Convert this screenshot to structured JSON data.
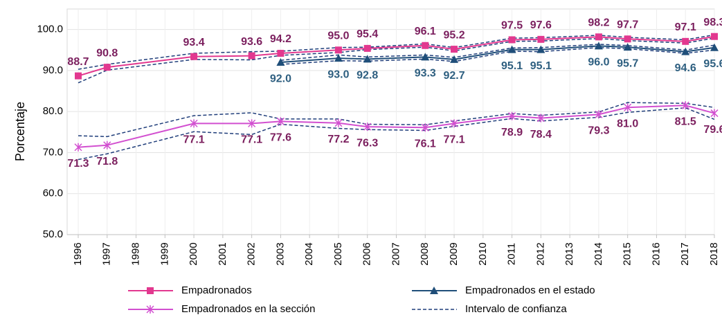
{
  "chart_data": {
    "type": "line",
    "y_label": "Porcentaje",
    "xlim": [
      1996,
      2018
    ],
    "xticks": [
      1996,
      1997,
      1998,
      1999,
      2000,
      2001,
      2002,
      2003,
      2004,
      2005,
      2006,
      2007,
      2008,
      2009,
      2010,
      2011,
      2012,
      2013,
      2014,
      2015,
      2016,
      2017,
      2018
    ],
    "ylim": [
      50,
      105
    ],
    "yticks": [
      {
        "value": 50,
        "label": "50.0"
      },
      {
        "value": 60,
        "label": "60.0"
      },
      {
        "value": 70,
        "label": "70.0"
      },
      {
        "value": 80,
        "label": "80.0"
      },
      {
        "value": 90,
        "label": "90.0"
      },
      {
        "value": 100,
        "label": "100.0"
      }
    ],
    "grid": true,
    "series": [
      {
        "name": "Empadronados",
        "color": "#e2388f",
        "label_color": "#7b1f5e",
        "marker": "square",
        "label_side": "above",
        "x": [
          1996,
          1997,
          2000,
          2002,
          2003,
          2005,
          2006,
          2008,
          2009,
          2011,
          2012,
          2014,
          2015,
          2017,
          2018
        ],
        "values": [
          88.7,
          90.8,
          93.4,
          93.6,
          94.2,
          95.0,
          95.4,
          96.1,
          95.2,
          97.5,
          97.6,
          98.2,
          97.7,
          97.1,
          98.3
        ],
        "value_labels": [
          "88.7",
          "90.8",
          "93.4",
          "93.6",
          "94.2",
          "95.0",
          "95.4",
          "96.1",
          "95.2",
          "97.5",
          "97.6",
          "98.2",
          "97.7",
          "97.1",
          "98.3"
        ]
      },
      {
        "name": "Empadronados en el estado",
        "color": "#1f4e79",
        "label_color": "#2e5f80",
        "marker": "triangle",
        "label_side": "below",
        "x": [
          2003,
          2005,
          2006,
          2008,
          2009,
          2011,
          2012,
          2014,
          2015,
          2017,
          2018
        ],
        "values": [
          92.0,
          93.0,
          92.8,
          93.3,
          92.7,
          95.1,
          95.1,
          96.0,
          95.7,
          94.6,
          95.6
        ],
        "value_labels": [
          "92.0",
          "93.0",
          "92.8",
          "93.3",
          "92.7",
          "95.1",
          "95.1",
          "96.0",
          "95.7",
          "94.6",
          "95.6"
        ]
      },
      {
        "name": "Empadronados en la sección",
        "color": "#d24fd0",
        "label_color": "#7b1f5e",
        "marker": "star",
        "label_side": "below",
        "x": [
          1996,
          1997,
          2000,
          2002,
          2003,
          2005,
          2006,
          2008,
          2009,
          2011,
          2012,
          2014,
          2015,
          2017,
          2018
        ],
        "values": [
          71.3,
          71.8,
          77.1,
          77.1,
          77.6,
          77.2,
          76.3,
          76.1,
          77.1,
          78.9,
          78.4,
          79.3,
          81.0,
          81.5,
          79.6
        ],
        "value_labels": [
          "71.3",
          "71.8",
          "77.1",
          "77.1",
          "77.6",
          "77.2",
          "76.3",
          "76.1",
          "77.1",
          "78.9",
          "78.4",
          "79.3",
          "81.0",
          "81.5",
          "79.6"
        ]
      }
    ],
    "confidence_interval": {
      "name": "Intervalo de confianza",
      "color": "#1f3d7a",
      "bands": [
        {
          "upper": [
            90.3,
            91.5,
            94.2,
            94.6,
            94.7,
            95.6,
            95.7,
            96.5,
            95.6,
            97.9,
            98.0,
            98.6,
            98.1,
            97.5,
            98.7
          ],
          "lower": [
            87.0,
            90.1,
            92.7,
            92.6,
            93.7,
            94.4,
            95.1,
            95.7,
            94.8,
            97.1,
            97.2,
            97.8,
            97.3,
            96.7,
            97.9
          ]
        },
        {
          "upper": [
            92.5,
            93.8,
            93.3,
            93.8,
            93.2,
            95.5,
            95.6,
            96.4,
            96.1,
            95.0,
            96.2
          ],
          "lower": [
            91.5,
            92.4,
            92.3,
            92.8,
            92.2,
            94.7,
            94.6,
            95.6,
            95.3,
            94.2,
            95.0
          ]
        },
        {
          "upper": [
            74.1,
            73.9,
            79.0,
            79.7,
            78.2,
            78.2,
            76.9,
            76.8,
            77.7,
            79.5,
            79.1,
            79.9,
            82.2,
            82.0,
            81.0
          ],
          "lower": [
            68.3,
            69.7,
            75.1,
            74.4,
            76.9,
            75.9,
            75.6,
            75.4,
            76.4,
            78.3,
            77.7,
            78.6,
            79.8,
            80.9,
            78.1
          ]
        }
      ]
    }
  }
}
